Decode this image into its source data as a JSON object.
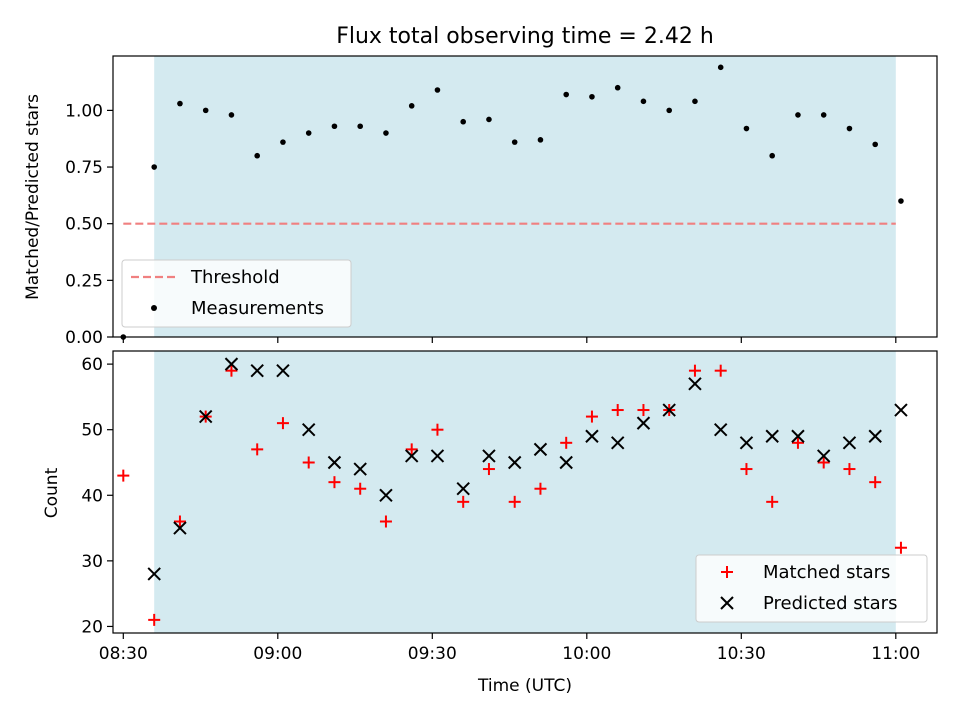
{
  "chart_data": [
    {
      "type": "scatter",
      "title": "Flux total observing time = 2.42 h",
      "ylabel": "Matched/Predicted stars",
      "xlabel": "",
      "ylim": [
        0,
        1.24
      ],
      "y_ticks": [
        0.0,
        0.25,
        0.5,
        0.75,
        1.0
      ],
      "y_tick_labels": [
        "0.00",
        "0.25",
        "0.50",
        "0.75",
        "1.00"
      ],
      "x_time_range": [
        "08:28",
        "11:08"
      ],
      "shaded_span": [
        "08:36",
        "11:00"
      ],
      "shade_color": "#d4eaf0",
      "legend_position": "lower-left",
      "threshold": {
        "name": "Threshold",
        "value": 0.5,
        "x_range": [
          "08:30",
          "11:00"
        ],
        "color": "#f08080"
      },
      "series": [
        {
          "name": "Measurements",
          "marker": "dot",
          "color": "#000000",
          "x": [
            "08:30",
            "08:36",
            "08:41",
            "08:46",
            "08:51",
            "08:56",
            "09:01",
            "09:06",
            "09:11",
            "09:16",
            "09:21",
            "09:26",
            "09:31",
            "09:36",
            "09:41",
            "09:46",
            "09:51",
            "09:56",
            "10:01",
            "10:06",
            "10:11",
            "10:16",
            "10:21",
            "10:26",
            "10:31",
            "10:36",
            "10:41",
            "10:46",
            "10:51",
            "10:56",
            "11:01"
          ],
          "y": [
            0.0,
            0.75,
            1.03,
            1.0,
            0.98,
            0.8,
            0.86,
            0.9,
            0.93,
            0.93,
            0.9,
            1.02,
            1.09,
            0.95,
            0.96,
            0.86,
            0.87,
            1.07,
            1.06,
            1.1,
            1.04,
            1.0,
            1.04,
            1.19,
            0.92,
            0.8,
            0.98,
            0.98,
            0.92,
            0.85,
            0.6
          ]
        }
      ]
    },
    {
      "type": "scatter",
      "title": "",
      "ylabel": "Count",
      "xlabel": "Time (UTC)",
      "ylim": [
        19,
        62
      ],
      "y_ticks": [
        20,
        30,
        40,
        50,
        60
      ],
      "y_tick_labels": [
        "20",
        "30",
        "40",
        "50",
        "60"
      ],
      "x_ticks": [
        "08:30",
        "09:00",
        "09:30",
        "10:00",
        "10:30",
        "11:00"
      ],
      "x_tick_labels": [
        "08:30",
        "09:00",
        "09:30",
        "10:00",
        "10:30",
        "11:00"
      ],
      "x_time_range": [
        "08:28",
        "11:08"
      ],
      "shaded_span": [
        "08:36",
        "11:00"
      ],
      "shade_color": "#d4eaf0",
      "legend_position": "lower-right",
      "series": [
        {
          "name": "Matched stars",
          "marker": "plus",
          "color": "#ff0000",
          "x": [
            "08:30",
            "08:36",
            "08:41",
            "08:46",
            "08:51",
            "08:56",
            "09:01",
            "09:06",
            "09:11",
            "09:16",
            "09:21",
            "09:26",
            "09:31",
            "09:36",
            "09:41",
            "09:46",
            "09:51",
            "09:56",
            "10:01",
            "10:06",
            "10:11",
            "10:16",
            "10:21",
            "10:26",
            "10:31",
            "10:36",
            "10:41",
            "10:46",
            "10:51",
            "10:56",
            "11:01"
          ],
          "y": [
            43,
            21,
            36,
            52,
            59,
            47,
            51,
            45,
            42,
            41,
            36,
            47,
            50,
            39,
            44,
            39,
            41,
            48,
            52,
            53,
            53,
            53,
            59,
            59,
            44,
            39,
            48,
            45,
            44,
            42,
            32
          ]
        },
        {
          "name": "Predicted stars",
          "marker": "x",
          "color": "#000000",
          "x": [
            "08:36",
            "08:41",
            "08:46",
            "08:51",
            "08:56",
            "09:01",
            "09:06",
            "09:11",
            "09:16",
            "09:21",
            "09:26",
            "09:31",
            "09:36",
            "09:41",
            "09:46",
            "09:51",
            "09:56",
            "10:01",
            "10:06",
            "10:11",
            "10:16",
            "10:21",
            "10:26",
            "10:31",
            "10:36",
            "10:41",
            "10:46",
            "10:51",
            "10:56",
            "11:01"
          ],
          "y": [
            28,
            35,
            52,
            60,
            59,
            59,
            50,
            45,
            44,
            40,
            46,
            46,
            41,
            46,
            45,
            47,
            45,
            49,
            48,
            51,
            53,
            57,
            50,
            48,
            49,
            49,
            46,
            48,
            49,
            53
          ]
        }
      ]
    }
  ]
}
